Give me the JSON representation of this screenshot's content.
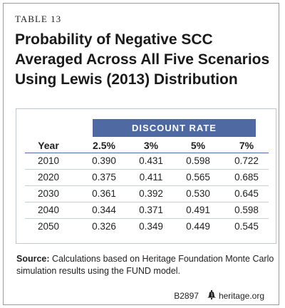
{
  "table_label": "TABLE 13",
  "title_lines": [
    "Probability of Negative SCC",
    "Averaged Across All Five Scenarios",
    "Using Lewis (2013) Distribution"
  ],
  "group_header": "DISCOUNT RATE",
  "columns": [
    "Year",
    "2.5%",
    "3%",
    "5%",
    "7%"
  ],
  "rows": [
    [
      "2010",
      "0.390",
      "0.431",
      "0.598",
      "0.722"
    ],
    [
      "2020",
      "0.375",
      "0.411",
      "0.565",
      "0.685"
    ],
    [
      "2030",
      "0.361",
      "0.392",
      "0.530",
      "0.645"
    ],
    [
      "2040",
      "0.344",
      "0.371",
      "0.491",
      "0.598"
    ],
    [
      "2050",
      "0.326",
      "0.349",
      "0.449",
      "0.545"
    ]
  ],
  "source_label": "Source:",
  "source_text": " Calculations based on Heritage Foundation Monte Carlo simulation results using the FUND model.",
  "footer_code": "B2897",
  "footer_site": "heritage.org",
  "colors": {
    "header_blue": "#4f6aa3",
    "border": "#9a9a9a"
  },
  "icons": {
    "logo": "liberty-bell-icon"
  }
}
